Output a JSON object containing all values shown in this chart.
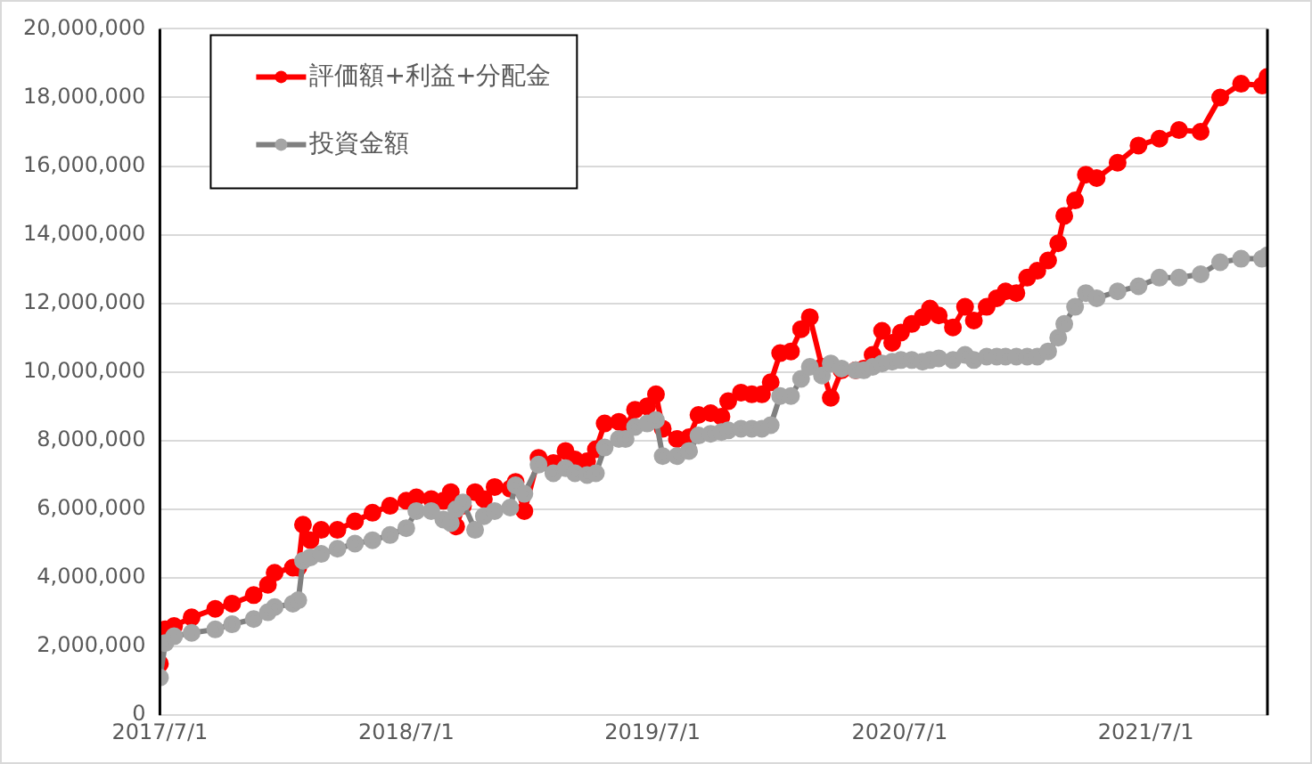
{
  "chart_data": {
    "type": "line",
    "legend": "top left",
    "grid": "y",
    "marker": "circle",
    "line_style": "solid",
    "x": [
      "2017-07-01",
      "2017-07-09",
      "2017-07-22",
      "2017-08-17",
      "2017-09-21",
      "2017-10-16",
      "2017-11-17",
      "2017-12-08",
      "2017-12-18",
      "2018-01-14",
      "2018-01-22",
      "2018-01-29",
      "2018-02-09",
      "2018-02-25",
      "2018-03-21",
      "2018-04-16",
      "2018-05-12",
      "2018-06-07",
      "2018-07-01",
      "2018-07-16",
      "2018-08-07",
      "2018-08-25",
      "2018-09-05",
      "2018-09-13",
      "2018-09-23",
      "2018-10-11",
      "2018-10-24",
      "2018-11-09",
      "2018-12-02",
      "2018-12-10",
      "2018-12-23",
      "2019-01-13",
      "2019-02-04",
      "2019-02-22",
      "2019-03-08",
      "2019-03-26",
      "2019-04-08",
      "2019-04-21",
      "2019-05-12",
      "2019-05-22",
      "2019-06-05",
      "2019-06-23",
      "2019-07-06",
      "2019-07-16",
      "2019-08-06",
      "2019-08-24",
      "2019-09-07",
      "2019-09-25",
      "2019-10-11",
      "2019-10-21",
      "2019-11-09",
      "2019-11-25",
      "2019-12-10",
      "2019-12-23",
      "2020-01-06",
      "2020-01-22",
      "2020-02-06",
      "2020-02-19",
      "2020-03-08",
      "2020-03-21",
      "2020-04-06",
      "2020-04-27",
      "2020-05-09",
      "2020-05-22",
      "2020-06-05",
      "2020-06-20",
      "2020-07-03",
      "2020-07-19",
      "2020-08-04",
      "2020-08-15",
      "2020-08-28",
      "2020-09-18",
      "2020-10-06",
      "2020-10-19",
      "2020-11-07",
      "2020-11-22",
      "2020-12-05",
      "2020-12-21",
      "2021-01-06",
      "2021-01-21",
      "2021-02-06",
      "2021-02-21",
      "2021-03-02",
      "2021-03-18",
      "2021-04-03",
      "2021-04-19",
      "2021-05-20",
      "2021-06-20",
      "2021-07-21",
      "2021-08-19",
      "2021-09-20",
      "2021-10-19",
      "2021-11-19",
      "2021-12-20",
      "2021-12-28"
    ],
    "xlim": [
      "2017-07-01",
      "2021-12-28"
    ],
    "xticks": [
      {
        "value": "2017-07-01",
        "label": "2017/7/1"
      },
      {
        "value": "2018-07-01",
        "label": "2018/7/1"
      },
      {
        "value": "2019-07-01",
        "label": "2019/7/1"
      },
      {
        "value": "2020-07-01",
        "label": "2020/7/1"
      },
      {
        "value": "2021-07-01",
        "label": "2021/7/1"
      }
    ],
    "ylim": [
      0,
      20000000
    ],
    "yticks": [
      {
        "value": 0,
        "label": "0"
      },
      {
        "value": 2000000,
        "label": "2,000,000"
      },
      {
        "value": 4000000,
        "label": "4,000,000"
      },
      {
        "value": 6000000,
        "label": "6,000,000"
      },
      {
        "value": 8000000,
        "label": "8,000,000"
      },
      {
        "value": 10000000,
        "label": "10,000,000"
      },
      {
        "value": 12000000,
        "label": "12,000,000"
      },
      {
        "value": 14000000,
        "label": "14,000,000"
      },
      {
        "value": 16000000,
        "label": "16,000,000"
      },
      {
        "value": 18000000,
        "label": "18,000,000"
      },
      {
        "value": 20000000,
        "label": "20,000,000"
      }
    ],
    "series": [
      {
        "name": "評価額+利益+分配金",
        "color": "#ff0000",
        "values": [
          1500000,
          2500000,
          2600000,
          2850000,
          3100000,
          3250000,
          3500000,
          3800000,
          4150000,
          4300000,
          4300000,
          5550000,
          5100000,
          5400000,
          5400000,
          5650000,
          5900000,
          6100000,
          6250000,
          6350000,
          6300000,
          6250000,
          6500000,
          5500000,
          6100000,
          6500000,
          6300000,
          6650000,
          6600000,
          6800000,
          5950000,
          7500000,
          7350000,
          7700000,
          7450000,
          7400000,
          7750000,
          8500000,
          8550000,
          8400000,
          8900000,
          9000000,
          9350000,
          8350000,
          8050000,
          8100000,
          8750000,
          8800000,
          8700000,
          9150000,
          9400000,
          9350000,
          9350000,
          9700000,
          10550000,
          10600000,
          11250000,
          11600000,
          10150000,
          9250000,
          10050000,
          10050000,
          10100000,
          10500000,
          11200000,
          10850000,
          11150000,
          11400000,
          11600000,
          11850000,
          11650000,
          11300000,
          11900000,
          11500000,
          11900000,
          12150000,
          12350000,
          12300000,
          12750000,
          12950000,
          13250000,
          13750000,
          14550000,
          15000000,
          15750000,
          15650000,
          16100000,
          16600000,
          16800000,
          17050000,
          17000000,
          18000000,
          18400000,
          18350000,
          18600000
        ]
      },
      {
        "name": "投資金額",
        "color": "#808080",
        "values": [
          1100000,
          2100000,
          2300000,
          2400000,
          2500000,
          2650000,
          2800000,
          3000000,
          3150000,
          3250000,
          3350000,
          4500000,
          4600000,
          4700000,
          4850000,
          5000000,
          5100000,
          5250000,
          5450000,
          5950000,
          5950000,
          5700000,
          5600000,
          6000000,
          6200000,
          5400000,
          5800000,
          5950000,
          6050000,
          6700000,
          6450000,
          7300000,
          7050000,
          7200000,
          7050000,
          7000000,
          7050000,
          7800000,
          8050000,
          8050000,
          8400000,
          8500000,
          8600000,
          7550000,
          7550000,
          7700000,
          8150000,
          8200000,
          8250000,
          8300000,
          8350000,
          8350000,
          8350000,
          8450000,
          9300000,
          9300000,
          9800000,
          10150000,
          9900000,
          10250000,
          10100000,
          10050000,
          10050000,
          10150000,
          10250000,
          10300000,
          10350000,
          10350000,
          10300000,
          10350000,
          10400000,
          10350000,
          10500000,
          10350000,
          10450000,
          10450000,
          10450000,
          10450000,
          10450000,
          10450000,
          10600000,
          11000000,
          11400000,
          11900000,
          12300000,
          12150000,
          12350000,
          12500000,
          12750000,
          12750000,
          12850000,
          13200000,
          13300000,
          13300000,
          13400000
        ]
      }
    ]
  }
}
